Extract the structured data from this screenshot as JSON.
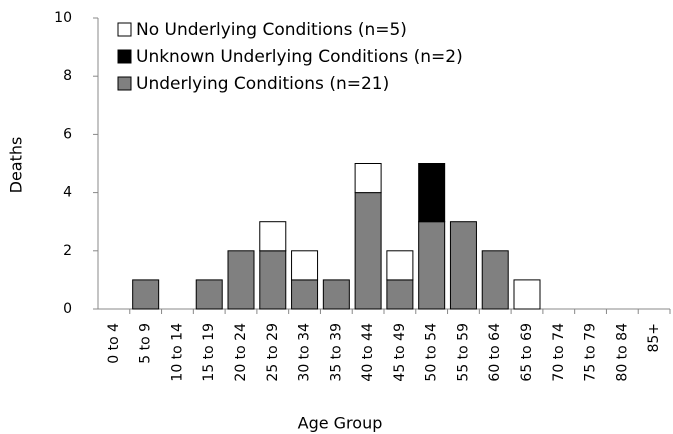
{
  "chart_data": {
    "type": "stacked_bar",
    "x_label": "Age Group",
    "y_label": "Deaths",
    "categories": [
      "0 to 4",
      "5 to 9",
      "10 to 14",
      "15 to 19",
      "20 to 24",
      "25 to 29",
      "30 to 34",
      "35 to 39",
      "40 to 44",
      "45 to 49",
      "50 to 54",
      "55 to 59",
      "60 to 64",
      "65 to 69",
      "70 to 74",
      "75 to 79",
      "80 to 84",
      "85+"
    ],
    "series": [
      {
        "name": "Underlying Conditions (n=21)",
        "color": "#808080",
        "values": [
          0,
          1,
          0,
          1,
          2,
          2,
          1,
          1,
          4,
          1,
          3,
          3,
          2,
          0,
          0,
          0,
          0,
          0
        ]
      },
      {
        "name": "Unknown Underlying Conditions (n=2)",
        "color": "#000000",
        "values": [
          0,
          0,
          0,
          0,
          0,
          0,
          0,
          0,
          0,
          0,
          2,
          0,
          0,
          0,
          0,
          0,
          0,
          0
        ]
      },
      {
        "name": "No Underlying Conditions (n=5)",
        "color": "#ffffff",
        "values": [
          0,
          0,
          0,
          0,
          0,
          1,
          1,
          0,
          1,
          1,
          0,
          0,
          0,
          1,
          0,
          0,
          0,
          0
        ]
      }
    ],
    "ylim": [
      0,
      10
    ],
    "yticks": [
      0,
      2,
      4,
      6,
      8,
      10
    ]
  }
}
